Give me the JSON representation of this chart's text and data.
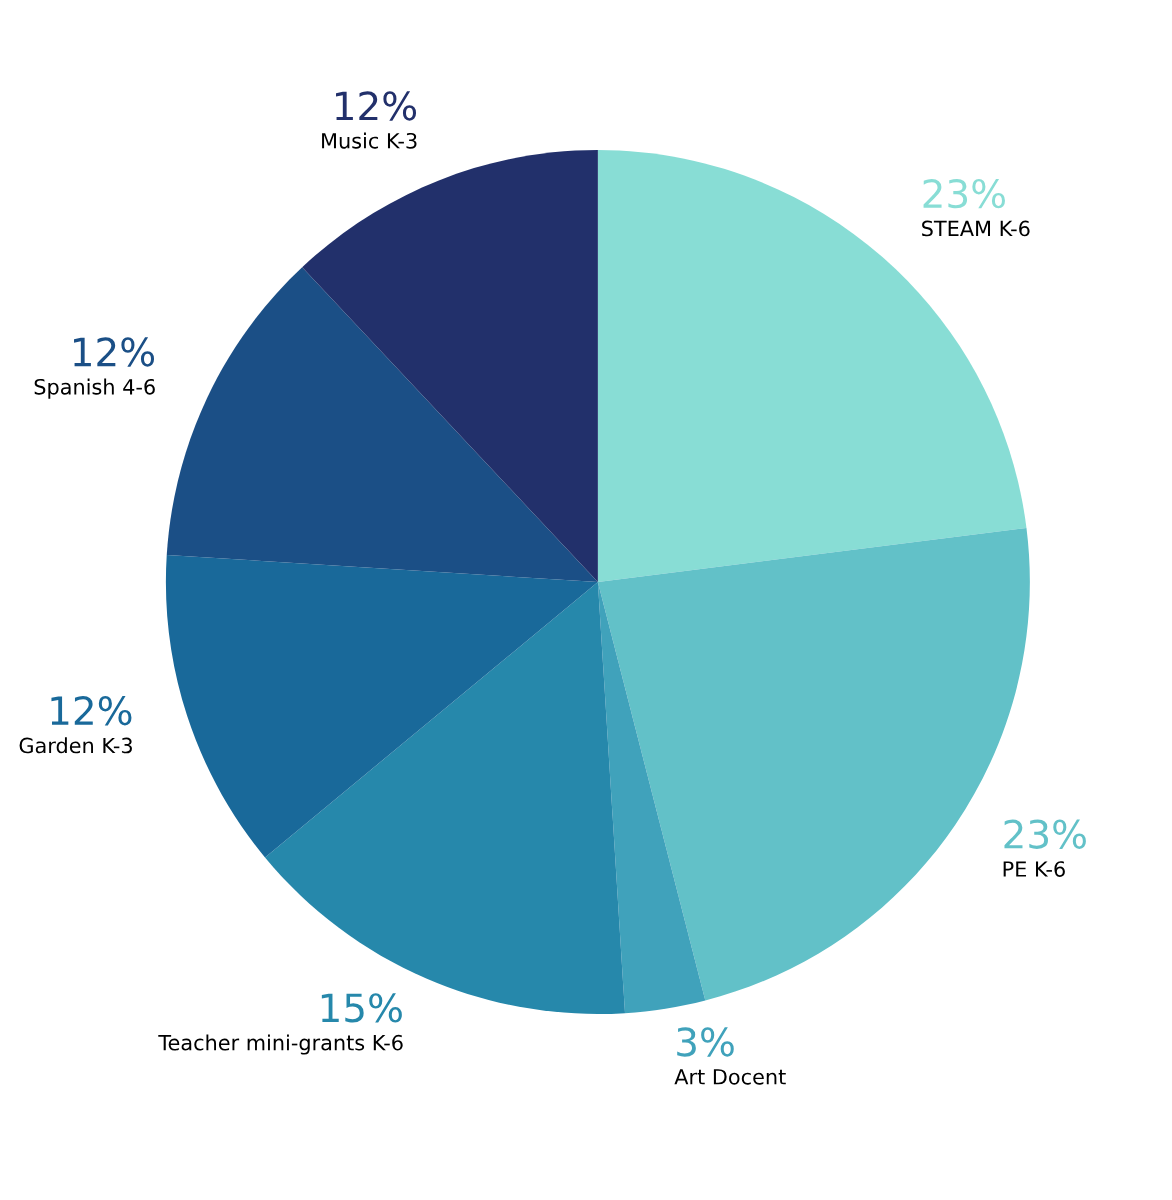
{
  "chart_data": {
    "type": "pie",
    "categories": [
      "STEAM K-6",
      "PE K-6",
      "Art Docent",
      "Teacher mini-grants K-6",
      "Garden K-3",
      "Spanish 4-6",
      "Music K-3"
    ],
    "values": [
      23,
      23,
      3,
      15,
      12,
      12,
      12
    ],
    "value_labels": [
      "23%",
      "23%",
      "3%",
      "15%",
      "12%",
      "12%",
      "12%"
    ],
    "colors": [
      "#88ddd5",
      "#62c1c8",
      "#40a2bb",
      "#2688ab",
      "#19699a",
      "#1b4f86",
      "#22306b"
    ],
    "legend": false
  }
}
